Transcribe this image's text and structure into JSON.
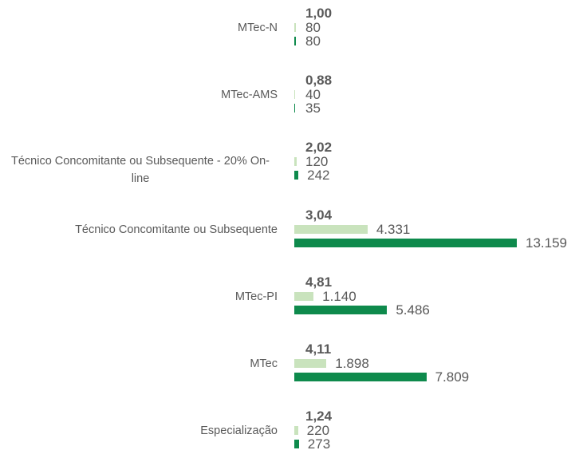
{
  "chart_data": {
    "type": "bar",
    "orientation": "horizontal",
    "categories": [
      "MTec-N",
      "MTec-AMS",
      "Técnico Concomitante ou Subsequente - 20% On-line",
      "Técnico Concomitante ou Subsequente",
      "MTec-PI",
      "MTec",
      "Especialização"
    ],
    "ratios": {
      "values": [
        1.0,
        0.88,
        2.02,
        3.04,
        4.81,
        4.11,
        1.24
      ],
      "value_labels": [
        "1,00",
        "0,88",
        "2,02",
        "3,04",
        "4,81",
        "4,11",
        "1,24"
      ]
    },
    "series": [
      {
        "color": "#c9e3bd",
        "values": [
          80,
          40,
          120,
          4331,
          1140,
          1898,
          220
        ],
        "value_labels": [
          "80",
          "40",
          "120",
          "4.331",
          "1.140",
          "1.898",
          "220"
        ]
      },
      {
        "color": "#0e8a4c",
        "values": [
          80,
          35,
          242,
          13159,
          5486,
          7809,
          273
        ],
        "value_labels": [
          "80",
          "35",
          "242",
          "13.159",
          "5.486",
          "7.809",
          "273"
        ]
      }
    ]
  }
}
